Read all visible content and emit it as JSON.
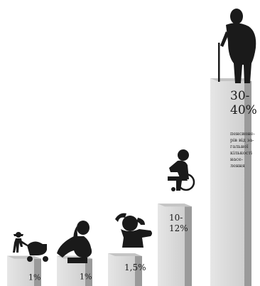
{
  "chart_data": {
    "type": "bar",
    "categories": [
      "stroller-parent",
      "pregnant-woman",
      "person-holding-head",
      "wheelchair-user",
      "elderly-person-with-cane"
    ],
    "values": [
      1,
      1,
      1.5,
      11,
      35
    ],
    "labels": [
      "1%",
      "1%",
      "1,5%",
      "10-12%",
      "30-40%"
    ],
    "caption_lines": [
      "пенсионе-",
      "рів від за-",
      "гальної",
      "кількості",
      "насе-",
      "лення"
    ],
    "title": "",
    "xlabel": "",
    "ylabel": "",
    "grid": false,
    "legend": "none"
  },
  "colors": {
    "bar_front": "#d9d9d9",
    "bar_side": "#9a9a9a",
    "bar_top": "#c4c4c4",
    "silhouette": "#1a1a1a",
    "background": "#ffffff"
  }
}
